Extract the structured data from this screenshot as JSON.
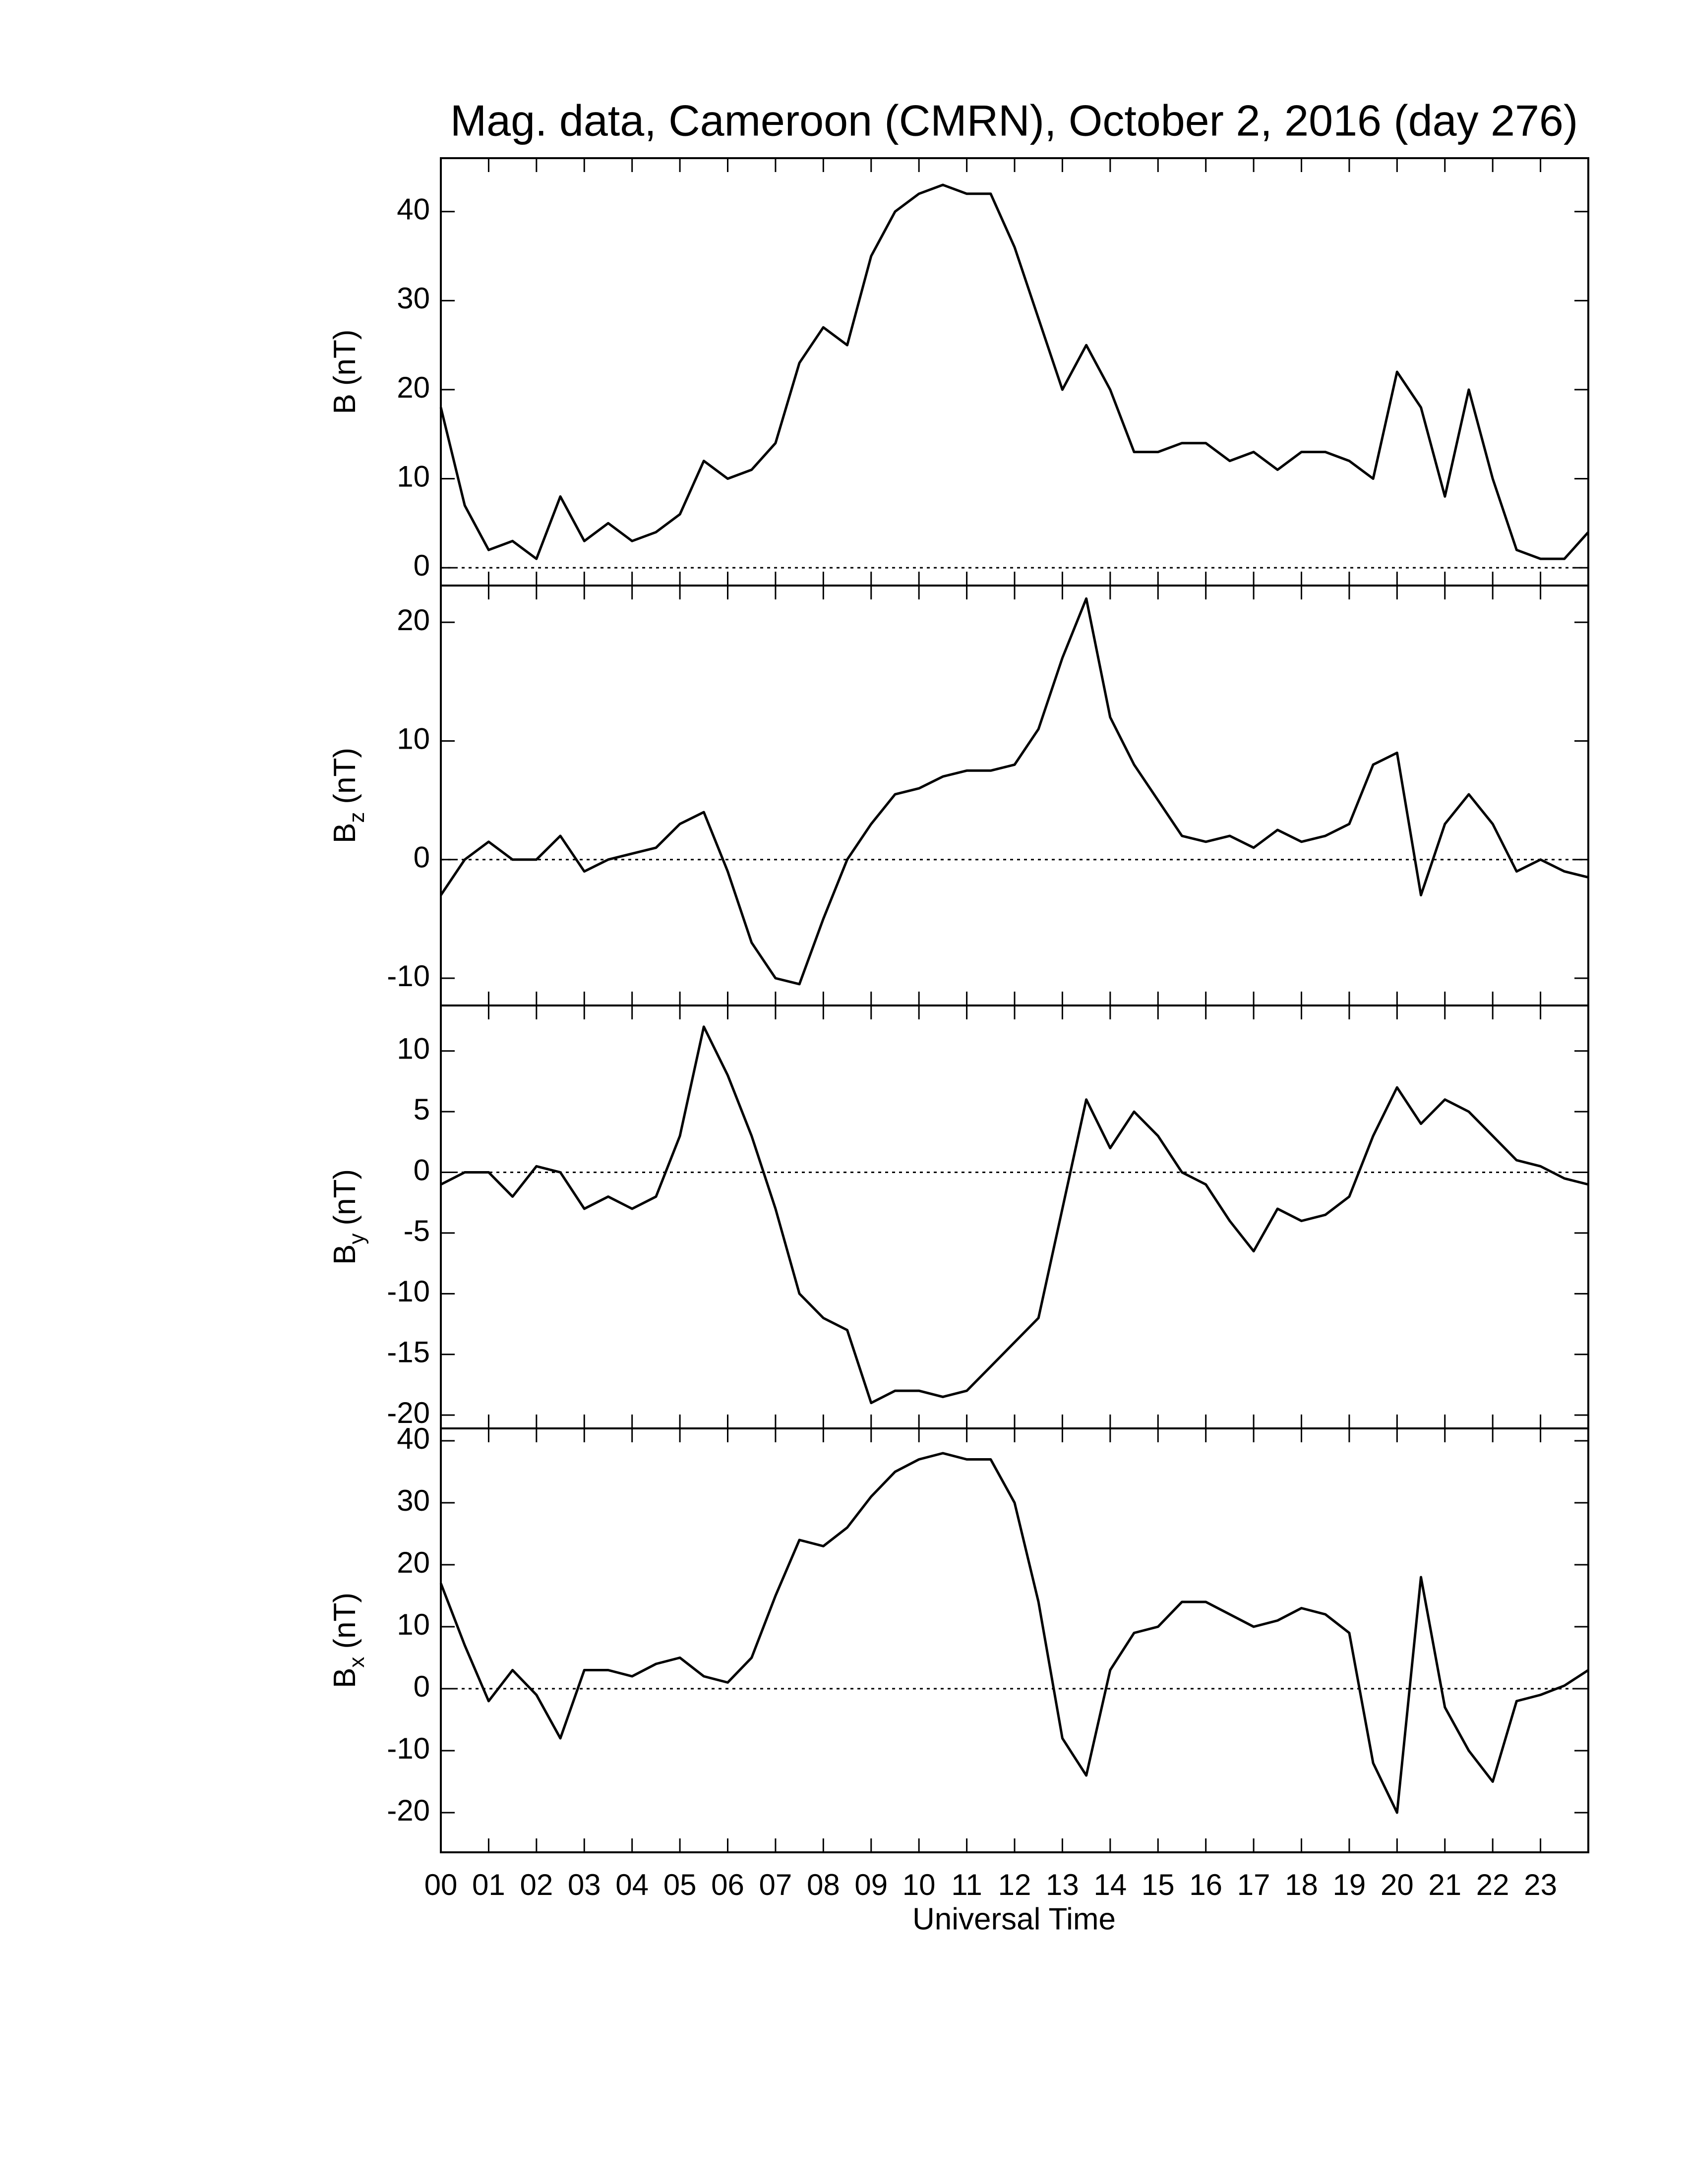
{
  "chart_data": [
    {
      "type": "line",
      "title": "Mag. data, Cameroon (CMRN), October 2, 2016 (day 276)",
      "ylabel": {
        "symbol": "B",
        "unit": "(nT)"
      },
      "color": "#000000",
      "zero_line": 0,
      "ylim": [
        -2,
        46
      ],
      "yticks": [
        0,
        10,
        20,
        30,
        40
      ],
      "x": [
        0,
        0.5,
        1,
        1.5,
        2,
        2.5,
        3,
        3.5,
        4,
        4.5,
        5,
        5.5,
        6,
        6.5,
        7,
        7.5,
        8,
        8.5,
        9,
        9.5,
        10,
        10.5,
        11,
        11.5,
        12,
        12.5,
        13,
        13.5,
        14,
        14.5,
        15,
        15.5,
        16,
        16.5,
        17,
        17.5,
        18,
        18.5,
        19,
        19.5,
        20,
        20.5,
        21,
        21.5,
        22,
        22.5,
        23,
        23.5,
        24
      ],
      "values": [
        18,
        7,
        2,
        3,
        1,
        8,
        3,
        5,
        3,
        4,
        6,
        12,
        10,
        11,
        14,
        23,
        27,
        25,
        35,
        40,
        42,
        43,
        42,
        42,
        36,
        28,
        20,
        25,
        20,
        13,
        13,
        14,
        14,
        12,
        13,
        11,
        13,
        13,
        12,
        10,
        22,
        18,
        8,
        20,
        10,
        2,
        1,
        1,
        4
      ]
    },
    {
      "type": "line",
      "ylabel": {
        "symbol": "B",
        "subscript": "z",
        "unit": "(nT)"
      },
      "color": "#000000",
      "zero_line": 0,
      "ylim": [
        -12.3,
        23.1
      ],
      "yticks": [
        -10,
        0,
        10,
        20
      ],
      "x": [
        0,
        0.5,
        1,
        1.5,
        2,
        2.5,
        3,
        3.5,
        4,
        4.5,
        5,
        5.5,
        6,
        6.5,
        7,
        7.5,
        8,
        8.5,
        9,
        9.5,
        10,
        10.5,
        11,
        11.5,
        12,
        12.5,
        13,
        13.5,
        14,
        14.5,
        15,
        15.5,
        16,
        16.5,
        17,
        17.5,
        18,
        18.5,
        19,
        19.5,
        20,
        20.5,
        21,
        21.5,
        22,
        22.5,
        23,
        23.5,
        24
      ],
      "values": [
        -3,
        0,
        1.5,
        0,
        0,
        2,
        -1,
        0,
        0.5,
        1,
        3,
        4,
        -1,
        -7,
        -10,
        -10.5,
        -5,
        0,
        3,
        5.5,
        6,
        7,
        7.5,
        7.5,
        8,
        11,
        17,
        22,
        12,
        8,
        5,
        2,
        1.5,
        2,
        1,
        2.5,
        1.5,
        2,
        3,
        8,
        9,
        -3,
        3,
        5.5,
        3,
        -1,
        0,
        -1,
        -1.5
      ]
    },
    {
      "type": "line",
      "ylabel": {
        "symbol": "B",
        "subscript": "y",
        "unit": "(nT)"
      },
      "color": "#000000",
      "zero_line": 0,
      "ylim": [
        -21.1,
        13.75
      ],
      "yticks": [
        -20,
        -15,
        -10,
        -5,
        0,
        5,
        10
      ],
      "x": [
        0,
        0.5,
        1,
        1.5,
        2,
        2.5,
        3,
        3.5,
        4,
        4.5,
        5,
        5.5,
        6,
        6.5,
        7,
        7.5,
        8,
        8.5,
        9,
        9.5,
        10,
        10.5,
        11,
        11.5,
        12,
        12.5,
        13,
        13.5,
        14,
        14.5,
        15,
        15.5,
        16,
        16.5,
        17,
        17.5,
        18,
        18.5,
        19,
        19.5,
        20,
        20.5,
        21,
        21.5,
        22,
        22.5,
        23,
        23.5,
        24
      ],
      "values": [
        -1,
        0,
        0,
        -2,
        0.5,
        0,
        -3,
        -2,
        -3,
        -2,
        3,
        12,
        8,
        3,
        -3,
        -10,
        -12,
        -13,
        -19,
        -18,
        -18,
        -18.5,
        -18,
        -16,
        -14,
        -12,
        -3,
        6,
        2,
        5,
        3,
        0,
        -1,
        -4,
        -6.5,
        -3,
        -4,
        -3.5,
        -2,
        3,
        7,
        4,
        6,
        5,
        3,
        1,
        0.5,
        -0.5,
        -1
      ]
    },
    {
      "type": "line",
      "ylabel": {
        "symbol": "B",
        "subscript": "x",
        "unit": "(nT)"
      },
      "xlabel": "Universal Time",
      "color": "#000000",
      "zero_line": 0,
      "xlim": [
        0,
        24
      ],
      "xticks": [
        {
          "value": 0,
          "label": "00"
        },
        {
          "value": 1,
          "label": "01"
        },
        {
          "value": 2,
          "label": "02"
        },
        {
          "value": 3,
          "label": "03"
        },
        {
          "value": 4,
          "label": "04"
        },
        {
          "value": 5,
          "label": "05"
        },
        {
          "value": 6,
          "label": "06"
        },
        {
          "value": 7,
          "label": "07"
        },
        {
          "value": 8,
          "label": "08"
        },
        {
          "value": 9,
          "label": "09"
        },
        10,
        11,
        12,
        13,
        14,
        15,
        16,
        17,
        18,
        19,
        20,
        21,
        22,
        23
      ],
      "ylim": [
        -26.4,
        42
      ],
      "yticks": [
        -20,
        -10,
        0,
        10,
        20,
        30,
        40
      ],
      "x": [
        0,
        0.5,
        1,
        1.5,
        2,
        2.5,
        3,
        3.5,
        4,
        4.5,
        5,
        5.5,
        6,
        6.5,
        7,
        7.5,
        8,
        8.5,
        9,
        9.5,
        10,
        10.5,
        11,
        11.5,
        12,
        12.5,
        13,
        13.5,
        14,
        14.5,
        15,
        15.5,
        16,
        16.5,
        17,
        17.5,
        18,
        18.5,
        19,
        19.5,
        20,
        20.5,
        21,
        21.5,
        22,
        22.5,
        23,
        23.5,
        24
      ],
      "values": [
        17,
        7,
        -2,
        3,
        -1,
        -8,
        3,
        3,
        2,
        4,
        5,
        2,
        1,
        5,
        15,
        24,
        23,
        26,
        31,
        35,
        37,
        38,
        37,
        37,
        30,
        14,
        -8,
        -14,
        3,
        9,
        10,
        14,
        14,
        12,
        10,
        11,
        13,
        12,
        9,
        -12,
        -20,
        18,
        -3,
        -10,
        -15,
        -2,
        -1,
        0.5,
        3
      ]
    }
  ]
}
